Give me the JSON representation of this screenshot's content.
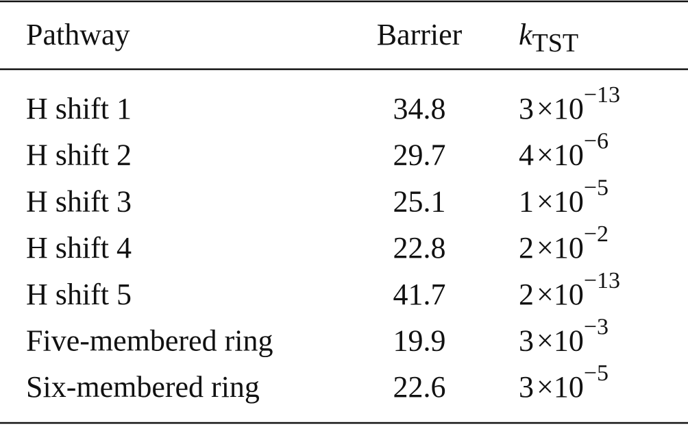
{
  "table": {
    "header": {
      "pathway": "Pathway",
      "barrier": "Barrier",
      "k_symbol": "k",
      "k_subscript": "TST"
    },
    "rows": [
      {
        "pathway": "H shift 1",
        "barrier": 34.8,
        "k": {
          "coefficient": 3,
          "times": "×10",
          "exponent": "−13"
        }
      },
      {
        "pathway": "H shift 2",
        "barrier": 29.7,
        "k": {
          "coefficient": 4,
          "times": "×10",
          "exponent": "−6"
        }
      },
      {
        "pathway": "H shift 3",
        "barrier": 25.1,
        "k": {
          "coefficient": 1,
          "times": "×10",
          "exponent": "−5"
        }
      },
      {
        "pathway": "H shift 4",
        "barrier": 22.8,
        "k": {
          "coefficient": 2,
          "times": "×10",
          "exponent": "−2"
        }
      },
      {
        "pathway": "H shift 5",
        "barrier": 41.7,
        "k": {
          "coefficient": 2,
          "times": "×10",
          "exponent": "−13"
        }
      },
      {
        "pathway": "Five-membered ring",
        "barrier": 19.9,
        "k": {
          "coefficient": 3,
          "times": "×10",
          "exponent": "−3"
        }
      },
      {
        "pathway": "Six-membered ring",
        "barrier": 22.6,
        "k": {
          "coefficient": 3,
          "times": "×10",
          "exponent": "−5"
        }
      }
    ]
  }
}
